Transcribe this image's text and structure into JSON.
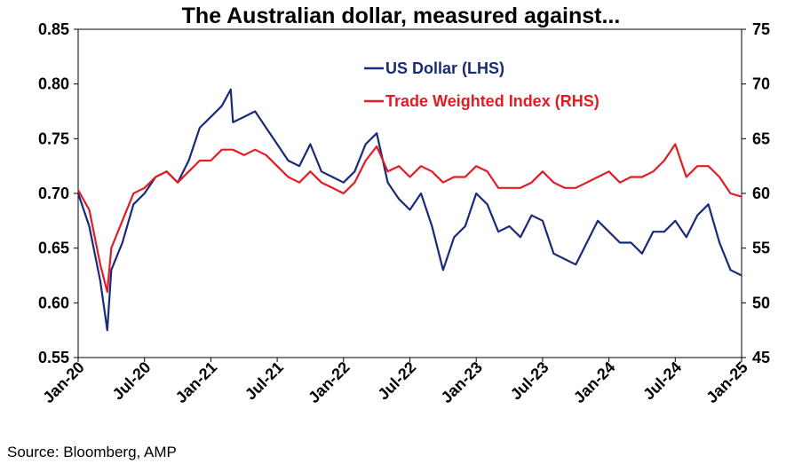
{
  "title": "The Australian dollar, measured against...",
  "source": "Source: Bloomberg, AMP",
  "colors": {
    "usd": "#1a2a78",
    "twi": "#e31b23",
    "axis": "#000000"
  },
  "chart_data": {
    "type": "line",
    "title": "The Australian dollar, measured against...",
    "x_ticks": [
      "Jan-20",
      "Jul-20",
      "Jan-21",
      "Jul-21",
      "Jan-22",
      "Jul-22",
      "Jan-23",
      "Jul-23",
      "Jan-24",
      "Jul-24",
      "Jan-25"
    ],
    "x_range": [
      "2020-01",
      "2025-01"
    ],
    "y_left": {
      "ticks": [
        "0.55",
        "0.60",
        "0.65",
        "0.70",
        "0.75",
        "0.80",
        "0.85"
      ],
      "min": 0.55,
      "max": 0.85
    },
    "y_right": {
      "ticks": [
        "45",
        "50",
        "55",
        "60",
        "65",
        "70",
        "75"
      ],
      "min": 45,
      "max": 75
    },
    "grid": false,
    "legend_position": "top-center",
    "series": [
      {
        "name": "US Dollar (LHS)",
        "axis": "left",
        "color": "#1a2a78",
        "points": [
          [
            "2020-01",
            0.7
          ],
          [
            "2020-02",
            0.67
          ],
          [
            "2020-03",
            0.62
          ],
          [
            "2020-03-20",
            0.575
          ],
          [
            "2020-04",
            0.63
          ],
          [
            "2020-05",
            0.655
          ],
          [
            "2020-06",
            0.69
          ],
          [
            "2020-07",
            0.7
          ],
          [
            "2020-08",
            0.715
          ],
          [
            "2020-09",
            0.72
          ],
          [
            "2020-10",
            0.71
          ],
          [
            "2020-11",
            0.73
          ],
          [
            "2020-12",
            0.76
          ],
          [
            "2021-01",
            0.77
          ],
          [
            "2021-02",
            0.78
          ],
          [
            "2021-02-25",
            0.795
          ],
          [
            "2021-03",
            0.765
          ],
          [
            "2021-04",
            0.77
          ],
          [
            "2021-05",
            0.775
          ],
          [
            "2021-06",
            0.76
          ],
          [
            "2021-07",
            0.745
          ],
          [
            "2021-08",
            0.73
          ],
          [
            "2021-09",
            0.725
          ],
          [
            "2021-10",
            0.745
          ],
          [
            "2021-11",
            0.72
          ],
          [
            "2021-12",
            0.715
          ],
          [
            "2022-01",
            0.71
          ],
          [
            "2022-02",
            0.72
          ],
          [
            "2022-03",
            0.745
          ],
          [
            "2022-04",
            0.755
          ],
          [
            "2022-05",
            0.71
          ],
          [
            "2022-06",
            0.695
          ],
          [
            "2022-07",
            0.685
          ],
          [
            "2022-08",
            0.7
          ],
          [
            "2022-09",
            0.67
          ],
          [
            "2022-10",
            0.63
          ],
          [
            "2022-11",
            0.66
          ],
          [
            "2022-12",
            0.67
          ],
          [
            "2023-01",
            0.7
          ],
          [
            "2023-02",
            0.69
          ],
          [
            "2023-03",
            0.665
          ],
          [
            "2023-04",
            0.67
          ],
          [
            "2023-05",
            0.66
          ],
          [
            "2023-06",
            0.68
          ],
          [
            "2023-07",
            0.675
          ],
          [
            "2023-08",
            0.645
          ],
          [
            "2023-09",
            0.64
          ],
          [
            "2023-10",
            0.635
          ],
          [
            "2023-11",
            0.655
          ],
          [
            "2023-12",
            0.675
          ],
          [
            "2024-01",
            0.665
          ],
          [
            "2024-02",
            0.655
          ],
          [
            "2024-03",
            0.655
          ],
          [
            "2024-04",
            0.645
          ],
          [
            "2024-05",
            0.665
          ],
          [
            "2024-06",
            0.665
          ],
          [
            "2024-07",
            0.675
          ],
          [
            "2024-08",
            0.66
          ],
          [
            "2024-09",
            0.68
          ],
          [
            "2024-10",
            0.69
          ],
          [
            "2024-11",
            0.655
          ],
          [
            "2024-12",
            0.63
          ],
          [
            "2025-01",
            0.625
          ]
        ]
      },
      {
        "name": "Trade Weighted Index (RHS)",
        "axis": "right",
        "color": "#e31b23",
        "points": [
          [
            "2020-01",
            60.3
          ],
          [
            "2020-02",
            58.5
          ],
          [
            "2020-03",
            53.5
          ],
          [
            "2020-03-20",
            51.0
          ],
          [
            "2020-04",
            55.0
          ],
          [
            "2020-05",
            57.5
          ],
          [
            "2020-06",
            60.0
          ],
          [
            "2020-07",
            60.5
          ],
          [
            "2020-08",
            61.5
          ],
          [
            "2020-09",
            62.0
          ],
          [
            "2020-10",
            61.0
          ],
          [
            "2020-11",
            62.0
          ],
          [
            "2020-12",
            63.0
          ],
          [
            "2021-01",
            63.0
          ],
          [
            "2021-02",
            64.0
          ],
          [
            "2021-03",
            64.0
          ],
          [
            "2021-04",
            63.5
          ],
          [
            "2021-05",
            64.0
          ],
          [
            "2021-06",
            63.5
          ],
          [
            "2021-07",
            62.5
          ],
          [
            "2021-08",
            61.5
          ],
          [
            "2021-09",
            61.0
          ],
          [
            "2021-10",
            62.0
          ],
          [
            "2021-11",
            61.0
          ],
          [
            "2021-12",
            60.5
          ],
          [
            "2022-01",
            60.0
          ],
          [
            "2022-02",
            61.0
          ],
          [
            "2022-03",
            63.0
          ],
          [
            "2022-04",
            64.3
          ],
          [
            "2022-05",
            62.0
          ],
          [
            "2022-06",
            62.5
          ],
          [
            "2022-07",
            61.5
          ],
          [
            "2022-08",
            62.5
          ],
          [
            "2022-09",
            62.0
          ],
          [
            "2022-10",
            61.0
          ],
          [
            "2022-11",
            61.5
          ],
          [
            "2022-12",
            61.5
          ],
          [
            "2023-01",
            62.5
          ],
          [
            "2023-02",
            62.0
          ],
          [
            "2023-03",
            60.5
          ],
          [
            "2023-04",
            60.5
          ],
          [
            "2023-05",
            60.5
          ],
          [
            "2023-06",
            61.0
          ],
          [
            "2023-07",
            62.0
          ],
          [
            "2023-08",
            61.0
          ],
          [
            "2023-09",
            60.5
          ],
          [
            "2023-10",
            60.5
          ],
          [
            "2023-11",
            61.0
          ],
          [
            "2023-12",
            61.5
          ],
          [
            "2024-01",
            62.0
          ],
          [
            "2024-02",
            61.0
          ],
          [
            "2024-03",
            61.5
          ],
          [
            "2024-04",
            61.5
          ],
          [
            "2024-05",
            62.0
          ],
          [
            "2024-06",
            63.0
          ],
          [
            "2024-07",
            64.5
          ],
          [
            "2024-08",
            61.5
          ],
          [
            "2024-09",
            62.5
          ],
          [
            "2024-10",
            62.5
          ],
          [
            "2024-11",
            61.5
          ],
          [
            "2024-12",
            60.0
          ],
          [
            "2025-01",
            59.7
          ]
        ]
      }
    ]
  }
}
